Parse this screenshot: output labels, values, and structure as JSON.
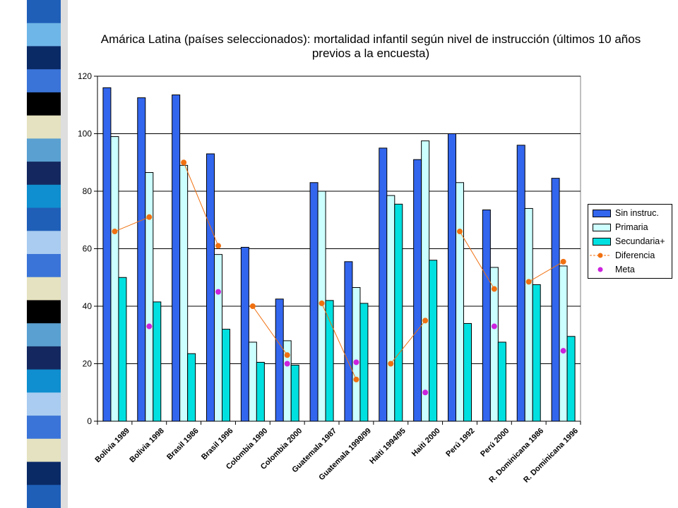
{
  "slide": {
    "stripe_colors": [
      "#1f5fb8",
      "#6fb6e8",
      "#0a2a66",
      "#3a74d8",
      "#000000",
      "#e4e2c0",
      "#5aa0d0",
      "#14285f",
      "#0f8fcf",
      "#1f5fb8",
      "#a9ccf0",
      "#3a74d8",
      "#e4e2c0",
      "#000000",
      "#5aa0d0",
      "#14285f",
      "#0f8fcf",
      "#a9ccf0",
      "#3a74d8",
      "#e4e2c0",
      "#0a2a66",
      "#1f5fb8"
    ]
  },
  "chart_data": {
    "type": "bar",
    "title": "Amárica Latina (países seleccionados): mortalidad infantil  según nivel de instrucción (últimos 10 años previos a la  encuesta)",
    "categories": [
      "Bolivia 1989",
      "Bolivia 1998",
      "Brasil 1986",
      "Brasil 1996",
      "Colombia 1990",
      "Colombia 2000",
      "Guatemala 1987",
      "Guatemala 1998/99",
      "Haiti 1994/95",
      "Haiti 2000",
      "Perú 1992",
      "Perú 2000",
      "R. Dominicana 1986",
      "R. Dominicana 1996"
    ],
    "ylim": [
      0,
      120
    ],
    "yticks": [
      "0",
      "20",
      "40",
      "60",
      "80",
      "100",
      "120"
    ],
    "grid": true,
    "legend_position": "right",
    "series": [
      {
        "name": "Sin instruc.",
        "kind": "bar",
        "color": "#3366ee",
        "values": [
          116,
          112.5,
          113.5,
          93,
          60.5,
          42.5,
          83,
          55.5,
          95,
          91,
          100,
          73.5,
          96,
          84.5
        ]
      },
      {
        "name": "Primaria",
        "kind": "bar",
        "color": "#ccffff",
        "values": [
          99,
          86.5,
          89,
          58,
          27.5,
          28,
          80,
          46.5,
          78.5,
          97.5,
          83,
          53.5,
          74,
          54
        ]
      },
      {
        "name": "Secundaria+",
        "kind": "bar",
        "color": "#00e0e0",
        "values": [
          50,
          41.5,
          23.5,
          32,
          20.5,
          19.5,
          42,
          41,
          75.5,
          56,
          34,
          27.5,
          47.5,
          29.5
        ]
      },
      {
        "name": "Diferencia",
        "kind": "line",
        "color": "#f07010",
        "segments": [
          [
            [
              0,
              66
            ],
            [
              1,
              71
            ]
          ],
          [
            [
              2,
              90
            ],
            [
              3,
              61
            ]
          ],
          [
            [
              4,
              40
            ],
            [
              5,
              23
            ]
          ],
          [
            [
              6,
              41
            ],
            [
              7,
              14.5
            ]
          ],
          [
            [
              8,
              20
            ],
            [
              9,
              35
            ]
          ],
          [
            [
              10,
              66
            ],
            [
              11,
              46
            ]
          ],
          [
            [
              12,
              48.5
            ],
            [
              13,
              55.5
            ]
          ]
        ]
      },
      {
        "name": "Meta",
        "kind": "marker",
        "color": "#cc22dd",
        "points": [
          [
            1,
            33
          ],
          [
            3,
            45
          ],
          [
            5,
            20
          ],
          [
            7,
            20.5
          ],
          [
            9,
            10
          ],
          [
            11,
            33
          ],
          [
            13,
            24.5
          ]
        ]
      }
    ]
  }
}
